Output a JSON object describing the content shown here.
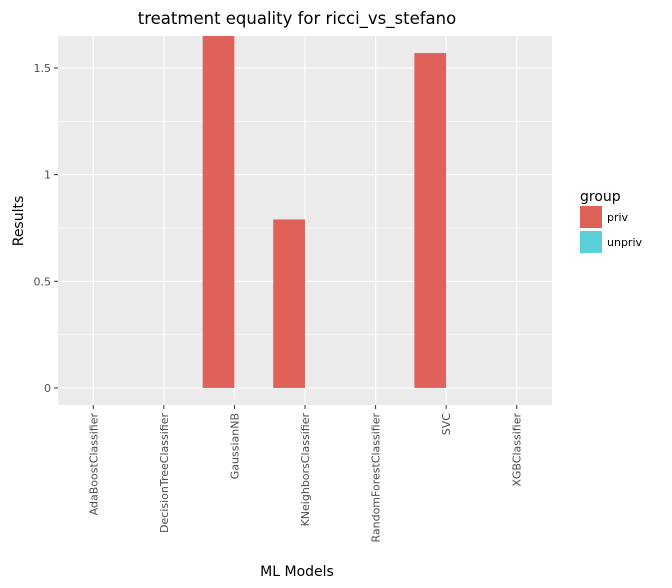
{
  "chart_data": {
    "type": "bar",
    "title": "treatment equality for ricci_vs_stefano",
    "xlabel": "ML Models",
    "ylabel": "Results",
    "categories": [
      "AdaBoostClassifier",
      "DecisionTreeClassifier",
      "GaussianNB",
      "KNeighborsClassifier",
      "RandomForestClassifier",
      "SVC",
      "XGBClassifier"
    ],
    "series": [
      {
        "name": "priv",
        "color": "#e0605a",
        "values": [
          0,
          0,
          1.65,
          0.79,
          0,
          1.57,
          0
        ]
      },
      {
        "name": "unpriv",
        "color": "#5bd0d8",
        "values": [
          0,
          0,
          0,
          0,
          0,
          0,
          0
        ]
      }
    ],
    "ylim": [
      -0.08,
      1.65
    ],
    "yticks": [
      0,
      0.5,
      1,
      1.5
    ],
    "ytick_labels": [
      "0",
      "0.5",
      "1",
      "1.5"
    ],
    "legend": {
      "title": "group",
      "placement": "right"
    },
    "grid": true,
    "panel_color": "#ebebeb"
  }
}
